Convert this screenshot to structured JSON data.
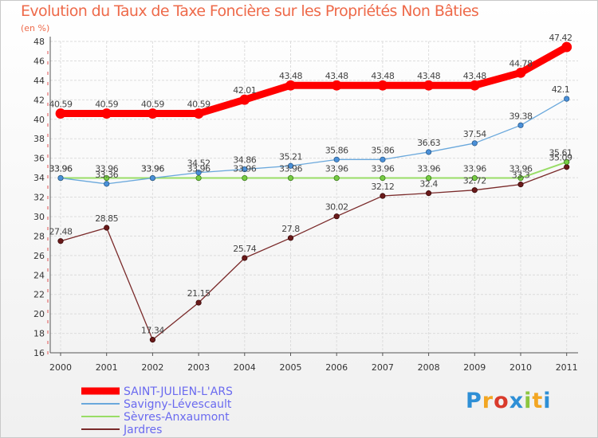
{
  "title": "Evolution du Taux de Taxe Foncière sur les Propriétés Non Bâties",
  "subtitle": "(en %)",
  "logo": {
    "text": "Proxiti",
    "letters": [
      {
        "ch": "P",
        "color": "#2e8fd6"
      },
      {
        "ch": "r",
        "color": "#f2a623"
      },
      {
        "ch": "o",
        "color": "#d93a2b"
      },
      {
        "ch": "x",
        "color": "#2e8fd6"
      },
      {
        "ch": "i",
        "color": "#8cc63f"
      },
      {
        "ch": "t",
        "color": "#f2a623"
      },
      {
        "ch": "i",
        "color": "#2e8fd6"
      }
    ]
  },
  "chart_data": {
    "type": "line",
    "title": "Evolution du Taux de Taxe Foncière sur les Propriétés Non Bâties",
    "ylabel": "(en %)",
    "xlabel": "",
    "ylim": [
      16,
      48
    ],
    "yticks": [
      "16",
      "18",
      "20",
      "22",
      "24",
      "26",
      "28",
      "30",
      "32",
      "34",
      "36",
      "38",
      "40",
      "42",
      "44",
      "46",
      "48"
    ],
    "categories": [
      "2000",
      "2001",
      "2002",
      "2003",
      "2004",
      "2005",
      "2006",
      "2007",
      "2008",
      "2009",
      "2010",
      "2011"
    ],
    "grid": true,
    "legend_position": "bottom-left",
    "series": [
      {
        "name": "SAINT-JULIEN-L'ARS",
        "color": "#ff0000",
        "values": [
          40.59,
          40.59,
          40.59,
          40.59,
          42.01,
          43.48,
          43.48,
          43.48,
          43.48,
          43.48,
          44.78,
          47.42
        ],
        "labels": [
          "40.59",
          "40.59",
          "40.59",
          "40.59",
          "42.01",
          "43.48",
          "43.48",
          "43.48",
          "43.48",
          "43.48",
          "44.78",
          "47.42"
        ]
      },
      {
        "name": "Savigny-Lévescault",
        "color": "#6aa8dc",
        "values": [
          33.96,
          33.36,
          33.96,
          34.52,
          34.86,
          35.21,
          35.86,
          35.86,
          36.63,
          37.54,
          39.38,
          42.1
        ],
        "labels": [
          "33.96",
          "33.36",
          "33.96",
          "34.52",
          "34.86",
          "35.21",
          "35.86",
          "35.86",
          "36.63",
          "37.54",
          "39.38",
          "42.1"
        ]
      },
      {
        "name": "Sèvres-Anxaumont",
        "color": "#99dd66",
        "values": [
          33.96,
          33.96,
          33.96,
          33.96,
          33.96,
          33.96,
          33.96,
          33.96,
          33.96,
          33.96,
          33.96,
          35.61
        ],
        "labels": [
          "33.96",
          "33.96",
          "33.96",
          "33.96",
          "33.96",
          "33.96",
          "33.96",
          "33.96",
          "33.96",
          "33.96",
          "33.96",
          "35.61"
        ]
      },
      {
        "name": "Jardres",
        "color": "#7a2a2a",
        "values": [
          27.48,
          28.85,
          17.34,
          21.15,
          25.74,
          27.8,
          30.02,
          32.12,
          32.4,
          32.72,
          33.3,
          35.09
        ],
        "labels": [
          "27.48",
          "28.85",
          "17.34",
          "21.15",
          "25.74",
          "27.8",
          "30.02",
          "32.12",
          "32.4",
          "32.72",
          "33.3",
          "35.09"
        ]
      }
    ]
  }
}
